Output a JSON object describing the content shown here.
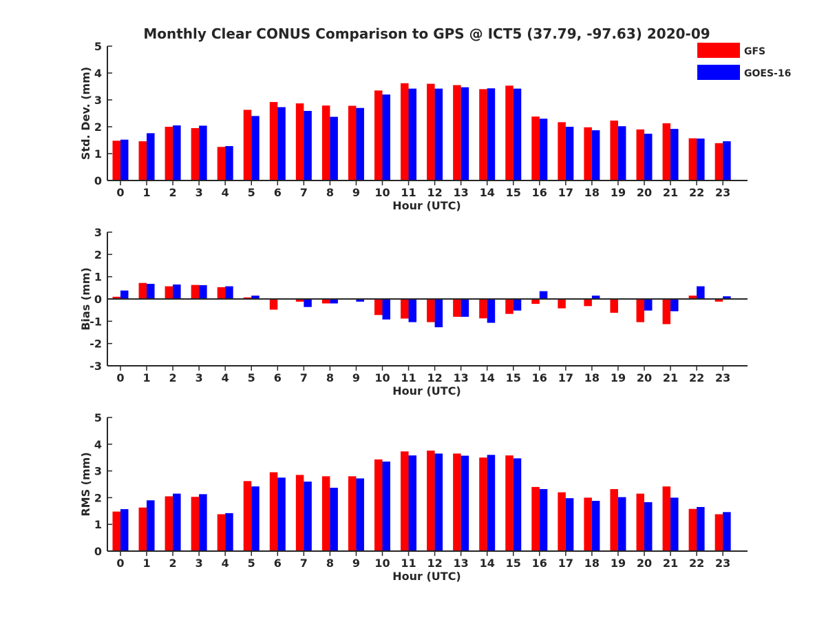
{
  "title": "Monthly Clear CONUS Comparison to GPS @ ICT5 (37.79, -97.63) 2020-09",
  "legend": {
    "placement": "top-right",
    "entries": [
      {
        "name": "GFS",
        "color": "#ff0000"
      },
      {
        "name": "GOES-16",
        "color": "#0000ff"
      }
    ]
  },
  "chart_data": [
    {
      "type": "bar",
      "xlabel": "Hour (UTC)",
      "ylabel": "Std. Dev. (mm)",
      "ylim": [
        0,
        5
      ],
      "yticks": [
        0,
        1,
        2,
        3,
        4,
        5
      ],
      "categories": [
        "0",
        "1",
        "2",
        "3",
        "4",
        "5",
        "6",
        "7",
        "8",
        "9",
        "10",
        "11",
        "12",
        "13",
        "14",
        "15",
        "16",
        "17",
        "18",
        "19",
        "20",
        "21",
        "22",
        "23"
      ],
      "series": [
        {
          "name": "GFS",
          "color": "#ff0000",
          "values": [
            1.48,
            1.46,
            2.0,
            1.95,
            1.25,
            2.63,
            2.92,
            2.87,
            2.79,
            2.78,
            3.35,
            3.62,
            3.6,
            3.55,
            3.4,
            3.53,
            2.38,
            2.17,
            1.98,
            2.23,
            1.9,
            2.13,
            1.57,
            1.39
          ]
        },
        {
          "name": "GOES-16",
          "color": "#0000ff",
          "values": [
            1.52,
            1.76,
            2.05,
            2.04,
            1.28,
            2.4,
            2.73,
            2.59,
            2.37,
            2.7,
            3.2,
            3.42,
            3.42,
            3.47,
            3.43,
            3.42,
            2.3,
            2.0,
            1.87,
            2.02,
            1.74,
            1.92,
            1.56,
            1.46
          ]
        }
      ]
    },
    {
      "type": "bar",
      "xlabel": "Hour (UTC)",
      "ylabel": "Bias (mm)",
      "ylim": [
        -3,
        3
      ],
      "yticks": [
        -3,
        -2,
        -1,
        0,
        1,
        2,
        3
      ],
      "categories": [
        "0",
        "1",
        "2",
        "3",
        "4",
        "5",
        "6",
        "7",
        "8",
        "9",
        "10",
        "11",
        "12",
        "13",
        "14",
        "15",
        "16",
        "17",
        "18",
        "19",
        "20",
        "21",
        "22",
        "23"
      ],
      "series": [
        {
          "name": "GFS",
          "color": "#ff0000",
          "values": [
            0.1,
            0.72,
            0.57,
            0.63,
            0.53,
            0.07,
            -0.48,
            -0.12,
            -0.2,
            -0.02,
            -0.72,
            -0.88,
            -1.04,
            -0.8,
            -0.87,
            -0.67,
            -0.22,
            -0.42,
            -0.32,
            -0.62,
            -1.04,
            -1.13,
            0.15,
            -0.12
          ]
        },
        {
          "name": "GOES-16",
          "color": "#0000ff",
          "values": [
            0.38,
            0.68,
            0.65,
            0.62,
            0.57,
            0.15,
            -0.02,
            -0.36,
            -0.2,
            -0.12,
            -0.92,
            -1.04,
            -1.27,
            -0.8,
            -1.07,
            -0.52,
            0.35,
            0.0,
            0.15,
            -0.03,
            -0.52,
            -0.55,
            0.57,
            0.12
          ]
        }
      ]
    },
    {
      "type": "bar",
      "xlabel": "Hour (UTC)",
      "ylabel": "RMS (mm)",
      "ylim": [
        0,
        5
      ],
      "yticks": [
        0,
        1,
        2,
        3,
        4,
        5
      ],
      "categories": [
        "0",
        "1",
        "2",
        "3",
        "4",
        "5",
        "6",
        "7",
        "8",
        "9",
        "10",
        "11",
        "12",
        "13",
        "14",
        "15",
        "16",
        "17",
        "18",
        "19",
        "20",
        "21",
        "22",
        "23"
      ],
      "series": [
        {
          "name": "GFS",
          "color": "#ff0000",
          "values": [
            1.48,
            1.63,
            2.05,
            2.03,
            1.38,
            2.62,
            2.95,
            2.85,
            2.8,
            2.8,
            3.43,
            3.73,
            3.76,
            3.65,
            3.5,
            3.58,
            2.4,
            2.2,
            2.0,
            2.32,
            2.15,
            2.42,
            1.58,
            1.38
          ]
        },
        {
          "name": "GOES-16",
          "color": "#0000ff",
          "values": [
            1.57,
            1.9,
            2.15,
            2.13,
            1.42,
            2.42,
            2.75,
            2.6,
            2.37,
            2.72,
            3.35,
            3.58,
            3.65,
            3.57,
            3.6,
            3.47,
            2.32,
            1.98,
            1.88,
            2.02,
            1.83,
            2.0,
            1.65,
            1.46
          ]
        }
      ]
    }
  ]
}
